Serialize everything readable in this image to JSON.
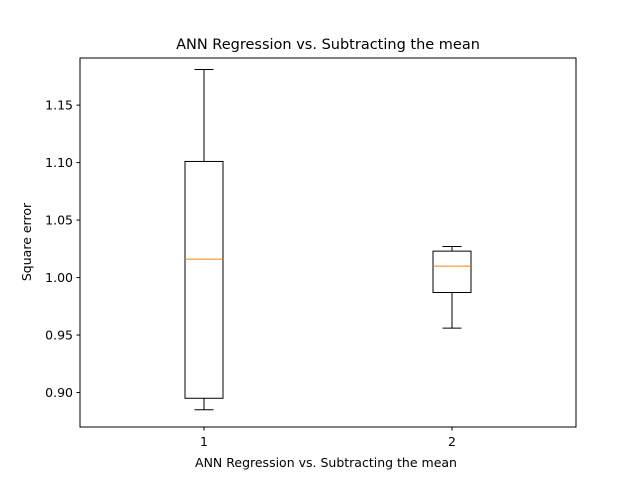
{
  "chart_data": {
    "type": "boxplot",
    "title": "ANN Regression   vs.   Subtracting the mean",
    "xlabel": "ANN Regression   vs.   Subtracting the mean",
    "ylabel": "Square error",
    "categories": [
      "1",
      "2"
    ],
    "xlim": [
      0.5,
      2.5
    ],
    "ylim": [
      0.87,
      1.191
    ],
    "yticks": [
      "0.90",
      "0.95",
      "1.00",
      "1.05",
      "1.10",
      "1.15"
    ],
    "grid": false,
    "boxes": [
      {
        "label": "1",
        "whislo": 0.885,
        "q1": 0.895,
        "med": 1.016,
        "q3": 1.101,
        "whishi": 1.181
      },
      {
        "label": "2",
        "whislo": 0.956,
        "q1": 0.987,
        "med": 1.01,
        "q3": 1.023,
        "whishi": 1.027
      }
    ],
    "colors": {
      "box": "#000000",
      "median": "#ff7f0e",
      "axes": "#000000"
    }
  }
}
